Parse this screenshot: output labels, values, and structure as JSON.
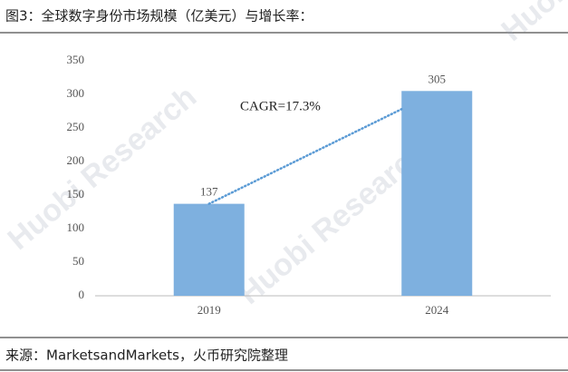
{
  "chart_data": {
    "type": "bar",
    "title": "图3：全球数字身份市场规模（亿美元）与增长率：",
    "categories": [
      "2019",
      "2024"
    ],
    "values": [
      137,
      305
    ],
    "color": "#7eb0df",
    "annotation": "CAGR=17.3%",
    "source": "来源：MarketsandMarkets，火币研究院整理",
    "watermark": "Huobi Research",
    "ylim": [
      0,
      350
    ],
    "yticks": [
      0,
      50,
      100,
      150,
      200,
      250,
      300,
      350
    ],
    "grid": false
  }
}
